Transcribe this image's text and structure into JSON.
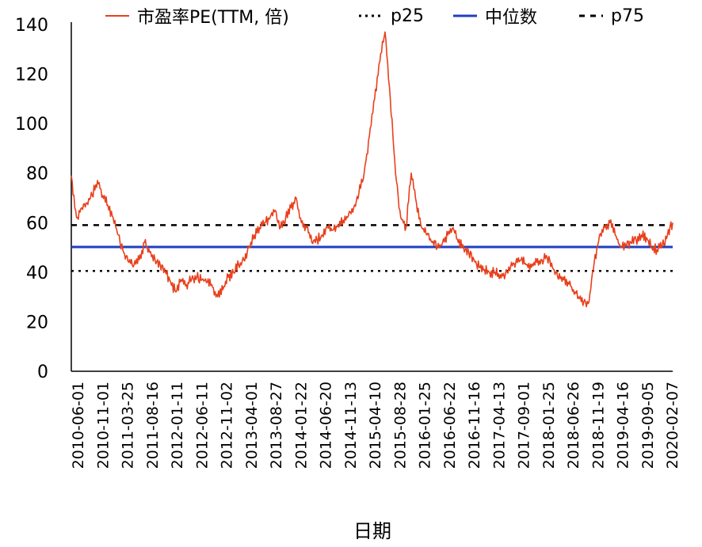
{
  "chart_data": {
    "type": "line",
    "xlabel": "日期",
    "ylabel": "",
    "ylim": [
      0,
      140
    ],
    "yticks": [
      0,
      20,
      40,
      60,
      80,
      100,
      120,
      140
    ],
    "x_tick_labels": [
      "2010-06-01",
      "2010-11-01",
      "2011-03-25",
      "2011-08-16",
      "2012-01-11",
      "2012-06-11",
      "2012-11-02",
      "2013-04-01",
      "2013-08-27",
      "2014-01-22",
      "2014-06-20",
      "2014-11-13",
      "2015-04-10",
      "2015-08-28",
      "2016-01-25",
      "2016-06-22",
      "2016-11-16",
      "2017-04-13",
      "2017-09-01",
      "2018-01-25",
      "2018-06-26",
      "2018-11-19",
      "2019-04-16",
      "2019-09-05",
      "2020-02-07"
    ],
    "legend_position": "top",
    "grid": false,
    "series": [
      {
        "name": "市盈率PE(TTM, 倍)",
        "color": "#e8401c",
        "style": "solid",
        "values": [
          79,
          62,
          66,
          68,
          71,
          77,
          71,
          67,
          62,
          55,
          48,
          44,
          43,
          45,
          52,
          48,
          45,
          43,
          40,
          36,
          32,
          37,
          35,
          37,
          38,
          37,
          36,
          34,
          30,
          33,
          38,
          40,
          43,
          45,
          50,
          55,
          58,
          60,
          62,
          65,
          58,
          62,
          66,
          70,
          60,
          58,
          52,
          53,
          55,
          58,
          57,
          59,
          61,
          63,
          66,
          72,
          80,
          95,
          110,
          125,
          137,
          110,
          80,
          62,
          58,
          80,
          68,
          58,
          55,
          52,
          50,
          52,
          55,
          58,
          52,
          50,
          48,
          45,
          42,
          41,
          40,
          40,
          39,
          39,
          42,
          44,
          45,
          43,
          42,
          44,
          45,
          46,
          42,
          38,
          38,
          36,
          33,
          30,
          28,
          28,
          44,
          55,
          58,
          60,
          55,
          50,
          51,
          52,
          53,
          55,
          54,
          50,
          49,
          51,
          55,
          60
        ]
      },
      {
        "name": "p25",
        "color": "#000000",
        "style": "dotted",
        "value": 40.5
      },
      {
        "name": "中位数",
        "color": "#1f3fbf",
        "style": "solid",
        "value": 50.2
      },
      {
        "name": "p75",
        "color": "#000000",
        "style": "dashed",
        "value": 59.0
      }
    ]
  }
}
